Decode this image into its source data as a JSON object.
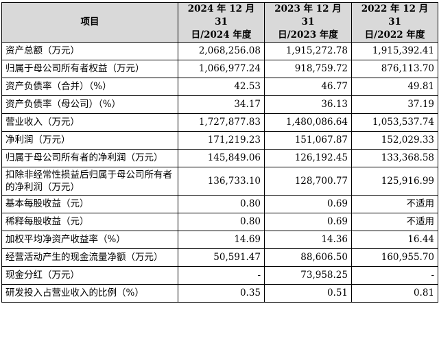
{
  "header": {
    "item": "项目",
    "col1": [
      "2024 年 12 月 31",
      "日/2024 年度"
    ],
    "col2": [
      "2023 年 12 月 31",
      "日/2023 年度"
    ],
    "col3": [
      "2022 年 12 月 31",
      "日/2022 年度"
    ]
  },
  "rows": [
    {
      "label": "资产总额（万元）",
      "v2024": "2,068,256.08",
      "v2023": "1,915,272.78",
      "v2022": "1,915,392.41"
    },
    {
      "label": "归属于母公司所有者权益（万元）",
      "v2024": "1,066,977.24",
      "v2023": "918,759.72",
      "v2022": "876,113.70"
    },
    {
      "label": "资产负债率（合并）（%）",
      "v2024": "42.53",
      "v2023": "46.77",
      "v2022": "49.81"
    },
    {
      "label": "资产负债率（母公司）（%）",
      "v2024": "34.17",
      "v2023": "36.13",
      "v2022": "37.19"
    },
    {
      "label": "营业收入（万元）",
      "v2024": "1,727,877.83",
      "v2023": "1,480,086.64",
      "v2022": "1,053,537.74"
    },
    {
      "label": "净利润（万元）",
      "v2024": "171,219.23",
      "v2023": "151,067.87",
      "v2022": "152,029.33"
    },
    {
      "label": "归属于母公司所有者的净利润（万元）",
      "v2024": "145,849.06",
      "v2023": "126,192.45",
      "v2022": "133,368.58"
    },
    {
      "label": "扣除非经常性损益后归属于母公司所有者的净利润（万元）",
      "v2024": "136,733.10",
      "v2023": "128,700.77",
      "v2022": "125,916.99"
    },
    {
      "label": "基本每股收益（元）",
      "v2024": "0.80",
      "v2023": "0.69",
      "v2022": "不适用"
    },
    {
      "label": "稀释每股收益（元）",
      "v2024": "0.80",
      "v2023": "0.69",
      "v2022": "不适用"
    },
    {
      "label": "加权平均净资产收益率（%）",
      "v2024": "14.69",
      "v2023": "14.36",
      "v2022": "16.44"
    },
    {
      "label": "经营活动产生的现金流量净额（万元）",
      "v2024": "50,591.47",
      "v2023": "88,606.50",
      "v2022": "160,955.70"
    },
    {
      "label": "现金分红（万元）",
      "v2024": "-",
      "v2023": "73,958.25",
      "v2022": "-"
    },
    {
      "label": "研发投入占营业收入的比例（%）",
      "v2024": "0.35",
      "v2023": "0.51",
      "v2022": "0.81"
    }
  ]
}
